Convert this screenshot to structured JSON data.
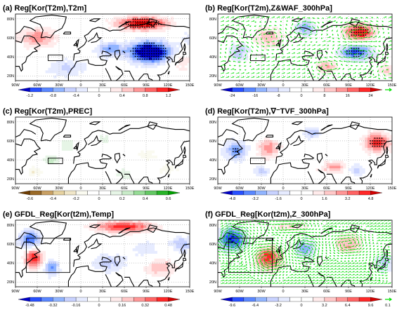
{
  "figure": {
    "panels": [
      {
        "id": "a",
        "title": "(a)  Reg[Kor(T2m),T2m]",
        "pattern": "t2m",
        "colorbar": [
          "-1.2",
          "-0.8",
          "-0.4",
          "0",
          "0.4",
          "0.8",
          "1.2"
        ],
        "vectors": false,
        "box": "kor",
        "dots": "t2m"
      },
      {
        "id": "b",
        "title": "(b)  Reg[Kor(T2m),Z&WAF_300hPa]",
        "pattern": "z300",
        "colorbar": [
          "-24",
          "-16",
          "-8",
          "0",
          "8",
          "16",
          "24"
        ],
        "vectors": true,
        "box": "kor",
        "dots": "z300",
        "arrow_label": ""
      },
      {
        "id": "c",
        "title": "(c)  Reg[Kor(T2m),PREC]",
        "pattern": "prec",
        "colorbar": [
          "-0.6",
          "-0.4",
          "-0.2",
          "0",
          "0.2",
          "0.4",
          "0.6"
        ],
        "vectors": false,
        "box": "kor",
        "dots": "prec",
        "green_scale": true
      },
      {
        "id": "d",
        "title": "(d)  Reg[Kor(T2m),∇⁻TVF_300hPa]",
        "pattern": "tvf",
        "colorbar": [
          "-4.8",
          "-3.2",
          "-1.6",
          "0",
          "1.6",
          "3.2",
          "4.8"
        ],
        "vectors": false,
        "box": "kor",
        "dots": "tvf"
      },
      {
        "id": "e",
        "title": "(e)  GFDL_Reg[Kor(t2m),Temp]",
        "pattern": "gt2m",
        "colorbar": [
          "-0.48",
          "-0.32",
          "-0.16",
          "0",
          "0.16",
          "0.32",
          "0.48"
        ],
        "vectors": false,
        "box": "gfdl",
        "dots": "none"
      },
      {
        "id": "f",
        "title": "(f)  GFDL_Reg[Kor(t2m),Z_300hPa]",
        "pattern": "gz300",
        "colorbar": [
          "-9.6",
          "-6.4",
          "-3.2",
          "0",
          "3.2",
          "6.4",
          "9.6"
        ],
        "vectors": true,
        "box": "gfdl",
        "dots": "none",
        "arrow_label": "0.1"
      }
    ],
    "lon_ticks": [
      "90W",
      "60W",
      "30W",
      "0",
      "30E",
      "60E",
      "90E",
      "120E",
      "150E"
    ],
    "lat_ticks": [
      "20N",
      "40N",
      "60N",
      "80N"
    ],
    "colors": {
      "neg_dark": "#0000c8",
      "neg_light": "#c8d2ff",
      "pos_dark": "#d20000",
      "pos_light": "#ffc8c8",
      "green_dark": "#00a000",
      "vector": "#00e000"
    }
  },
  "chart_data": [
    {
      "type": "heatmap",
      "title": "Reg[Kor(T2m),T2m]",
      "x_range": [
        "90W",
        "150E"
      ],
      "y_range": [
        "20N",
        "80N"
      ],
      "color_levels": [
        -1.2,
        -0.8,
        -0.4,
        0,
        0.4,
        0.8,
        1.2
      ]
    },
    {
      "type": "heatmap",
      "title": "Reg[Kor(T2m),Z&WAF_300hPa]",
      "x_range": [
        "90W",
        "150E"
      ],
      "y_range": [
        "20N",
        "80N"
      ],
      "color_levels": [
        -24,
        -16,
        -8,
        0,
        8,
        16,
        24
      ]
    },
    {
      "type": "heatmap",
      "title": "Reg[Kor(T2m),PREC]",
      "x_range": [
        "90W",
        "150E"
      ],
      "y_range": [
        "20N",
        "80N"
      ],
      "color_levels": [
        -0.6,
        -0.4,
        -0.2,
        0,
        0.2,
        0.4,
        0.6
      ]
    },
    {
      "type": "heatmap",
      "title": "Reg[Kor(T2m),∇⁻TVF_300hPa]",
      "x_range": [
        "90W",
        "150E"
      ],
      "y_range": [
        "20N",
        "80N"
      ],
      "color_levels": [
        -4.8,
        -3.2,
        -1.6,
        0,
        1.6,
        3.2,
        4.8
      ]
    },
    {
      "type": "heatmap",
      "title": "GFDL_Reg[Kor(t2m),Temp]",
      "x_range": [
        "90W",
        "150E"
      ],
      "y_range": [
        "20N",
        "80N"
      ],
      "color_levels": [
        -0.48,
        -0.32,
        -0.16,
        0,
        0.16,
        0.32,
        0.48
      ]
    },
    {
      "type": "heatmap",
      "title": "GFDL_Reg[Kor(t2m),Z_300hPa]",
      "x_range": [
        "90W",
        "150E"
      ],
      "y_range": [
        "20N",
        "80N"
      ],
      "color_levels": [
        -9.6,
        -6.4,
        -3.2,
        0,
        3.2,
        6.4,
        9.6
      ]
    }
  ]
}
